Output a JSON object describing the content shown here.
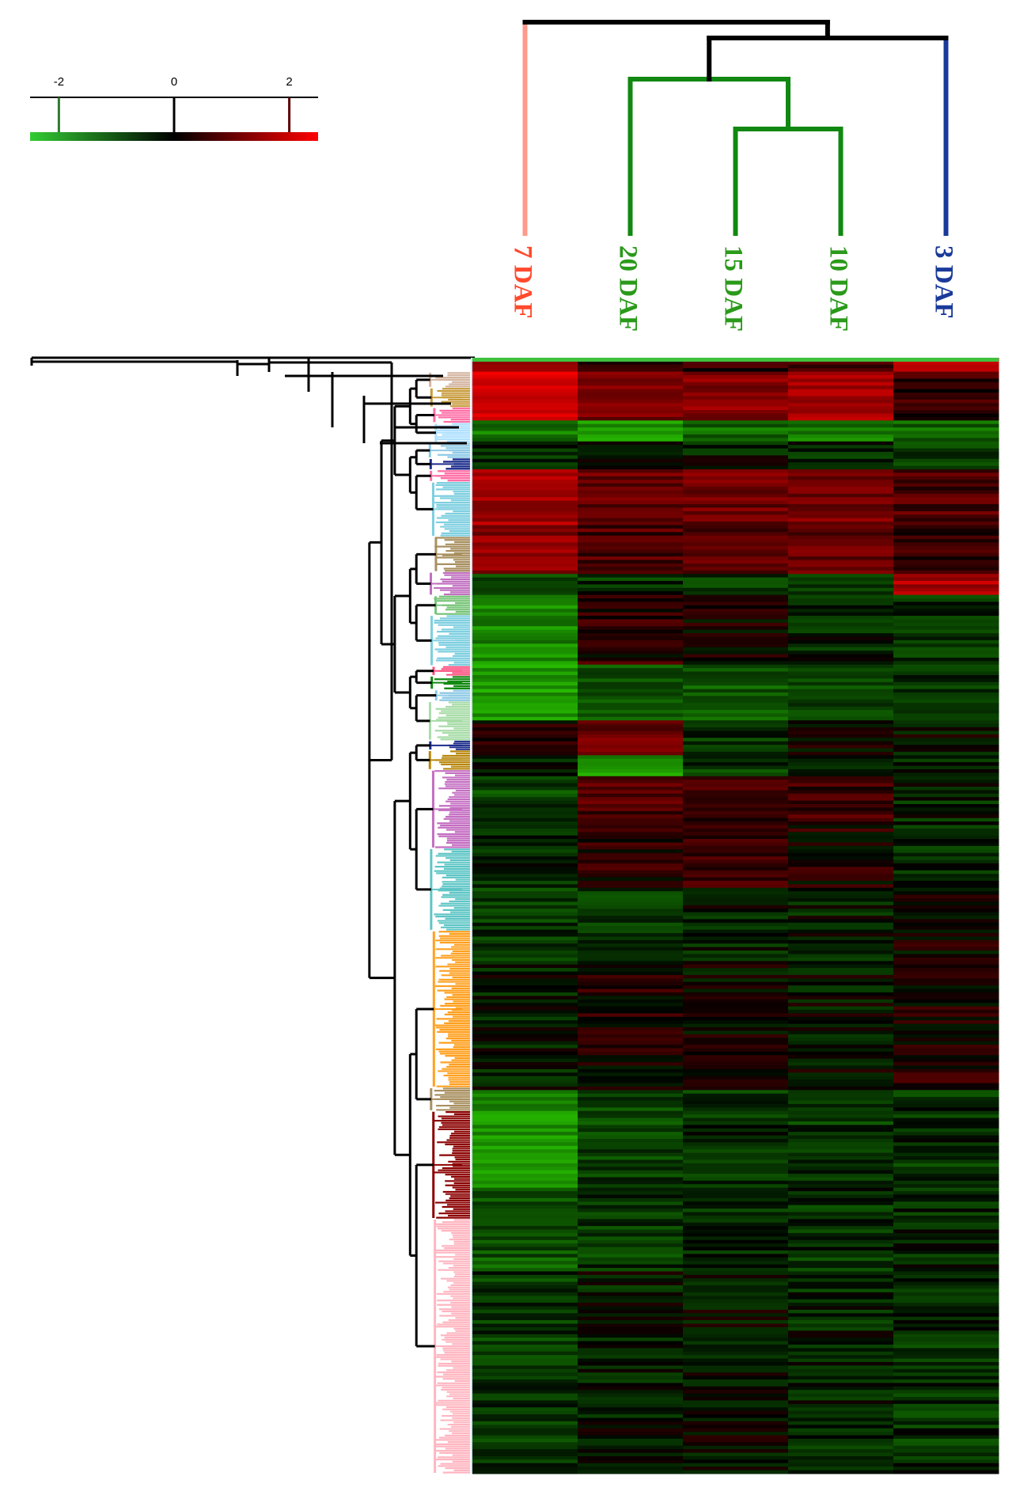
{
  "chart_data": {
    "type": "heatmap",
    "title": "",
    "columns": [
      "7 DAF",
      "20 DAF",
      "15 DAF",
      "10 DAF",
      "3 DAF"
    ],
    "column_colors": [
      "#ff4a2e",
      "#2a9a1a",
      "#2a9a1a",
      "#2a9a1a",
      "#1a3a9a"
    ],
    "color_scale": {
      "ticks": [
        "-2",
        "0",
        "2"
      ],
      "range": [
        -2.5,
        2.5
      ],
      "low_color": "#33cc33",
      "mid_color": "#000000",
      "high_color": "#ff0000"
    },
    "column_dendrogram": {
      "merges": [
        {
          "a": "15 DAF",
          "b": "10 DAF",
          "color": "#118811"
        },
        {
          "a": "20 DAF",
          "b": "(15 DAF,10 DAF)",
          "color": "#118811"
        },
        {
          "a": "3 DAF",
          "b": "(20 DAF,15 DAF,10 DAF)",
          "color": "#000000"
        },
        {
          "a": "7 DAF",
          "b": "(20 DAF,15 DAF,10 DAF,3 DAF)",
          "color": "#000000"
        }
      ],
      "leaf_colors": {
        "7 DAF": "#ff9a8a",
        "20 DAF": "#118811",
        "15 DAF": "#118811",
        "10 DAF": "#118811",
        "3 DAF": "#1a3a9a"
      }
    },
    "row_clusters": [
      {
        "color": "#d4b5a0",
        "size": 8
      },
      {
        "color": "#c79a3a",
        "size": 10
      },
      {
        "color": "#ff6fa6",
        "size": 8
      },
      {
        "color": "#aee0ff",
        "size": 10
      },
      {
        "color": "#8ecae6",
        "size": 8
      },
      {
        "color": "#1a2a8a",
        "size": 6
      },
      {
        "color": "#ff6fa6",
        "size": 6
      },
      {
        "color": "#7ecfe0",
        "size": 28
      },
      {
        "color": "#a89060",
        "size": 18
      },
      {
        "color": "#c070c0",
        "size": 12
      },
      {
        "color": "#79c57a",
        "size": 10
      },
      {
        "color": "#7ecfe0",
        "size": 26
      },
      {
        "color": "#ff5080",
        "size": 5
      },
      {
        "color": "#128a12",
        "size": 7
      },
      {
        "color": "#8ecae6",
        "size": 6
      },
      {
        "color": "#a8dca8",
        "size": 20
      },
      {
        "color": "#1a2a8a",
        "size": 5
      },
      {
        "color": "#b8860b",
        "size": 10
      },
      {
        "color": "#c46ec2",
        "size": 40
      },
      {
        "color": "#5ec5c5",
        "size": 42
      },
      {
        "color": "#ffa020",
        "size": 80
      },
      {
        "color": "#a89060",
        "size": 12
      },
      {
        "color": "#8b0000",
        "size": 55
      },
      {
        "color": "#ffb6c1",
        "size": 130
      }
    ],
    "blocks": [
      {
        "rows": 4,
        "values": [
          1.2,
          0.3,
          0.4,
          0.5,
          1.8
        ]
      },
      {
        "rows": 14,
        "values": [
          2.0,
          1.0,
          1.2,
          1.4,
          0.4
        ]
      },
      {
        "rows": 6,
        "values": [
          -1.2,
          -1.6,
          -1.0,
          -1.2,
          -1.0
        ]
      },
      {
        "rows": 8,
        "values": [
          -0.4,
          -0.3,
          -0.2,
          -0.3,
          -0.6
        ]
      },
      {
        "rows": 16,
        "values": [
          1.5,
          0.8,
          0.9,
          1.0,
          0.6
        ]
      },
      {
        "rows": 14,
        "values": [
          1.2,
          0.6,
          0.7,
          0.8,
          0.3
        ]
      },
      {
        "rows": 6,
        "values": [
          -0.8,
          -0.4,
          -0.5,
          -0.4,
          1.6
        ]
      },
      {
        "rows": 20,
        "values": [
          -1.4,
          0.3,
          0.1,
          -0.3,
          -0.4
        ]
      },
      {
        "rows": 16,
        "values": [
          -1.6,
          -0.8,
          -0.8,
          -0.7,
          -0.5
        ]
      },
      {
        "rows": 10,
        "values": [
          0.2,
          0.8,
          -0.4,
          0.1,
          -0.1
        ]
      },
      {
        "rows": 6,
        "values": [
          -0.3,
          -1.6,
          -0.5,
          -0.2,
          -0.2
        ]
      },
      {
        "rows": 12,
        "values": [
          -0.6,
          0.6,
          0.7,
          0.5,
          -0.3
        ]
      },
      {
        "rows": 20,
        "values": [
          -0.3,
          0.3,
          0.4,
          0.2,
          -0.4
        ]
      },
      {
        "rows": 22,
        "values": [
          -0.5,
          -0.4,
          -0.2,
          -0.2,
          0.1
        ]
      },
      {
        "rows": 36,
        "values": [
          -0.2,
          0.2,
          0.0,
          -0.1,
          0.2
        ]
      },
      {
        "rows": 28,
        "values": [
          -1.5,
          -0.6,
          -0.4,
          -0.5,
          -0.4
        ]
      },
      {
        "rows": 24,
        "values": [
          -0.8,
          -0.5,
          -0.3,
          -0.4,
          -0.3
        ]
      },
      {
        "rows": 58,
        "values": [
          -0.5,
          -0.2,
          -0.1,
          -0.3,
          -0.4
        ]
      }
    ],
    "noise_seed": 7
  }
}
